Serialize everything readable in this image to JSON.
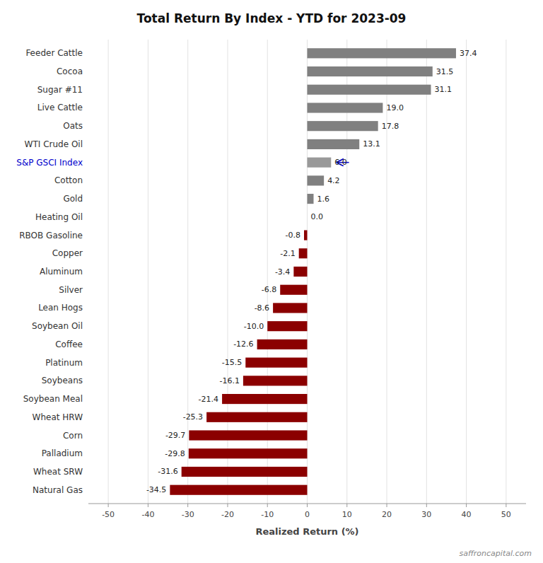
{
  "chart_data": {
    "type": "bar",
    "orientation": "horizontal",
    "title": "Total Return By Index - YTD for 2023-09",
    "xlabel": "Realized Return (%)",
    "watermark": "saffroncapital.com",
    "xlim": [
      -55,
      55
    ],
    "xticks": [
      -50,
      -40,
      -30,
      -20,
      -10,
      0,
      10,
      20,
      30,
      40,
      50
    ],
    "categories": [
      "Natural Gas",
      "Wheat SRW",
      "Palladium",
      "Corn",
      "Wheat HRW",
      "Soybean Meal",
      "Soybeans",
      "Platinum",
      "Coffee",
      "Soybean Oil",
      "Lean Hogs",
      "Silver",
      "Aluminum",
      "Copper",
      "RBOB Gasoline",
      "Heating Oil",
      "Gold",
      "Cotton",
      "S&P GSCI Index",
      "WTI Crude Oil",
      "Oats",
      "Live Cattle",
      "Sugar #11",
      "Cocoa",
      "Feeder Cattle"
    ],
    "values": [
      -34.5,
      -31.6,
      -29.8,
      -29.7,
      -25.3,
      -21.4,
      -16.1,
      -15.5,
      -12.6,
      -10.0,
      -8.6,
      -6.8,
      -3.4,
      -2.1,
      -0.8,
      0.0,
      1.6,
      4.2,
      6.0,
      13.1,
      17.8,
      19.0,
      31.1,
      31.5,
      37.4
    ],
    "value_labels": [
      "-34.5",
      "-31.6",
      "-29.8",
      "-29.7",
      "-25.3",
      "-21.4",
      "-16.1",
      "-15.5",
      "-12.6",
      "-10.0",
      "-8.6",
      "-6.8",
      "-3.4",
      "-2.1",
      "-0.8",
      "0.0",
      "1.6",
      "4.2",
      "6.0",
      "13.1",
      "17.8",
      "19.0",
      "31.1",
      "31.5",
      "37.4"
    ],
    "colors": [
      "#8B0000",
      "#8B0000",
      "#8B0000",
      "#8B0000",
      "#8B0000",
      "#8B0000",
      "#8B0000",
      "#8B0000",
      "#8B0000",
      "#8B0000",
      "#8B0000",
      "#8B0000",
      "#8B0000",
      "#8B0000",
      "#8B0000",
      "#808080",
      "#808080",
      "#808080",
      "#999999",
      "#808080",
      "#808080",
      "#808080",
      "#808080",
      "#808080",
      "#808080"
    ],
    "data_labels": true,
    "grid": true,
    "annotations": [
      {
        "category": "S&P GSCI Index",
        "x_start": 10.5,
        "x_end": 7.5,
        "color": "#0000cc"
      }
    ]
  }
}
